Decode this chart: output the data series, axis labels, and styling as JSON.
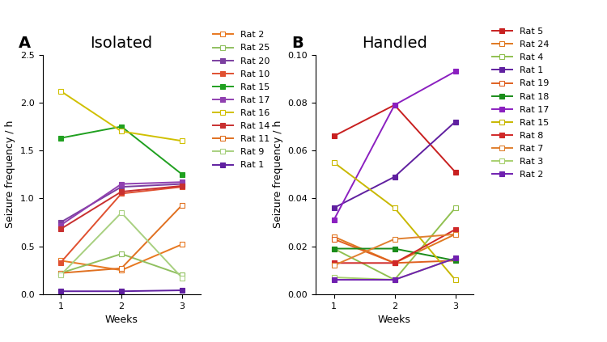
{
  "isolated": {
    "title": "Isolated",
    "xlabel": "Weeks",
    "ylabel": "Seizure frequency / h",
    "ylim": [
      0,
      2.5
    ],
    "yticks": [
      0.0,
      0.5,
      1.0,
      1.5,
      2.0,
      2.5
    ],
    "weeks": [
      1,
      2,
      3
    ],
    "rats": [
      {
        "label": "Rat 2",
        "color": "#E87820",
        "marker": "s",
        "filled": false,
        "data": [
          0.35,
          0.25,
          0.52
        ]
      },
      {
        "label": "Rat 25",
        "color": "#90C060",
        "marker": "s",
        "filled": false,
        "data": [
          0.22,
          0.42,
          0.2
        ]
      },
      {
        "label": "Rat 20",
        "color": "#7B3FA0",
        "marker": "s",
        "filled": true,
        "data": [
          0.75,
          1.12,
          1.15
        ]
      },
      {
        "label": "Rat 10",
        "color": "#E05030",
        "marker": "s",
        "filled": true,
        "data": [
          0.33,
          1.05,
          1.12
        ]
      },
      {
        "label": "Rat 15",
        "color": "#20A020",
        "marker": "s",
        "filled": true,
        "data": [
          1.63,
          1.75,
          1.25
        ]
      },
      {
        "label": "Rat 17",
        "color": "#9040B0",
        "marker": "s",
        "filled": true,
        "data": [
          0.72,
          1.15,
          1.17
        ]
      },
      {
        "label": "Rat 16",
        "color": "#D0C000",
        "marker": "s",
        "filled": false,
        "data": [
          2.12,
          1.7,
          1.6
        ]
      },
      {
        "label": "Rat 14",
        "color": "#C83030",
        "marker": "s",
        "filled": true,
        "data": [
          0.68,
          1.07,
          1.13
        ]
      },
      {
        "label": "Rat 11",
        "color": "#E07020",
        "marker": "s",
        "filled": false,
        "data": [
          0.22,
          0.27,
          0.93
        ]
      },
      {
        "label": "Rat 9",
        "color": "#A8D080",
        "marker": "s",
        "filled": false,
        "data": [
          0.2,
          0.85,
          0.17
        ]
      },
      {
        "label": "Rat 1",
        "color": "#6020A0",
        "marker": "s",
        "filled": true,
        "data": [
          0.03,
          0.03,
          0.04
        ]
      }
    ]
  },
  "handled": {
    "title": "Handled",
    "xlabel": "Weeks",
    "ylabel": "Seizure frequency / h",
    "ylim": [
      0,
      0.1
    ],
    "yticks": [
      0.0,
      0.02,
      0.04,
      0.06,
      0.08,
      0.1
    ],
    "weeks": [
      1,
      2,
      3
    ],
    "rats": [
      {
        "label": "Rat 5",
        "color": "#C82020",
        "marker": "s",
        "filled": true,
        "data": [
          0.066,
          0.079,
          0.051
        ]
      },
      {
        "label": "Rat 24",
        "color": "#E07820",
        "marker": "s",
        "filled": false,
        "data": [
          0.024,
          0.013,
          0.025
        ]
      },
      {
        "label": "Rat 4",
        "color": "#90C050",
        "marker": "s",
        "filled": false,
        "data": [
          0.019,
          0.006,
          0.036
        ]
      },
      {
        "label": "Rat 1",
        "color": "#6020A0",
        "marker": "s",
        "filled": true,
        "data": [
          0.036,
          0.049,
          0.072
        ]
      },
      {
        "label": "Rat 19",
        "color": "#E06020",
        "marker": "s",
        "filled": false,
        "data": [
          0.023,
          0.013,
          0.014
        ]
      },
      {
        "label": "Rat 18",
        "color": "#1A8C1A",
        "marker": "s",
        "filled": true,
        "data": [
          0.019,
          0.019,
          0.014
        ]
      },
      {
        "label": "Rat 17",
        "color": "#8B20C0",
        "marker": "s",
        "filled": true,
        "data": [
          0.031,
          0.079,
          0.093
        ]
      },
      {
        "label": "Rat 15",
        "color": "#C8B800",
        "marker": "s",
        "filled": false,
        "data": [
          0.055,
          0.036,
          0.006
        ]
      },
      {
        "label": "Rat 8",
        "color": "#D02828",
        "marker": "s",
        "filled": true,
        "data": [
          0.013,
          0.013,
          0.027
        ]
      },
      {
        "label": "Rat 7",
        "color": "#E08030",
        "marker": "s",
        "filled": false,
        "data": [
          0.012,
          0.023,
          0.025
        ]
      },
      {
        "label": "Rat 3",
        "color": "#A8D070",
        "marker": "s",
        "filled": false,
        "data": [
          0.007,
          0.006,
          0.015
        ]
      },
      {
        "label": "Rat 2",
        "color": "#7020B0",
        "marker": "s",
        "filled": true,
        "data": [
          0.006,
          0.006,
          0.015
        ]
      }
    ]
  },
  "bg_color": "#ffffff",
  "panel_label_fontsize": 14,
  "title_fontsize": 14,
  "axis_label_fontsize": 9,
  "tick_fontsize": 8,
  "legend_fontsize": 8,
  "linewidth": 1.4,
  "markersize": 4,
  "ax_positions": {
    "isolated": [
      0.07,
      0.14,
      0.26,
      0.7
    ],
    "handled": [
      0.52,
      0.14,
      0.26,
      0.7
    ]
  },
  "legend_positions": {
    "isolated": [
      0.345,
      0.1,
      0.14,
      0.82
    ],
    "handled": [
      0.805,
      0.05,
      0.14,
      0.88
    ]
  }
}
